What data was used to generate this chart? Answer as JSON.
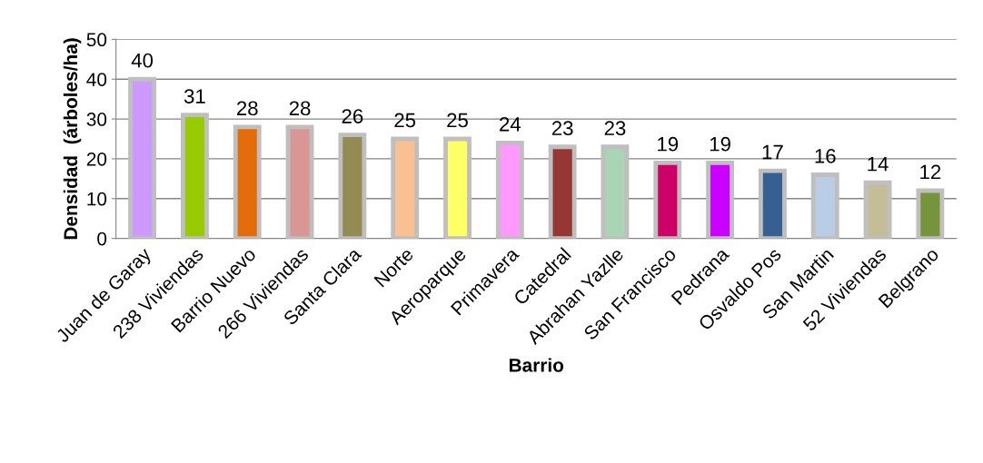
{
  "chart_data": {
    "type": "bar",
    "xlabel": "Barrio",
    "ylabel": "Densidad  (árboles/ha)",
    "categories": [
      "Juan de Garay",
      "238 Viviendas",
      "Barrio Nuevo",
      "266 Viviendas",
      "Santa Clara",
      "Norte",
      "Aeroparque",
      "Primavera",
      "Catedral",
      "Abrahan Yazlle",
      "San Francisco",
      "Pedrana",
      "Osvaldo Pos",
      "San Martin",
      "52 Viviendas",
      "Belgrano"
    ],
    "values": [
      40,
      31,
      28,
      28,
      26,
      25,
      25,
      24,
      23,
      23,
      19,
      19,
      17,
      16,
      14,
      12
    ],
    "colors": [
      "#cc99ff",
      "#99cc00",
      "#e46c0a",
      "#d99694",
      "#948a54",
      "#fac090",
      "#ffff66",
      "#ff99ff",
      "#953735",
      "#a9d5b5",
      "#cc0066",
      "#cc00ff",
      "#376092",
      "#b9cde5",
      "#c4bd97",
      "#77933c"
    ],
    "ylim": [
      0,
      50
    ],
    "yticks": [
      0,
      10,
      20,
      30,
      40,
      50
    ],
    "grid": "y",
    "legend": false,
    "data_labels": true
  }
}
